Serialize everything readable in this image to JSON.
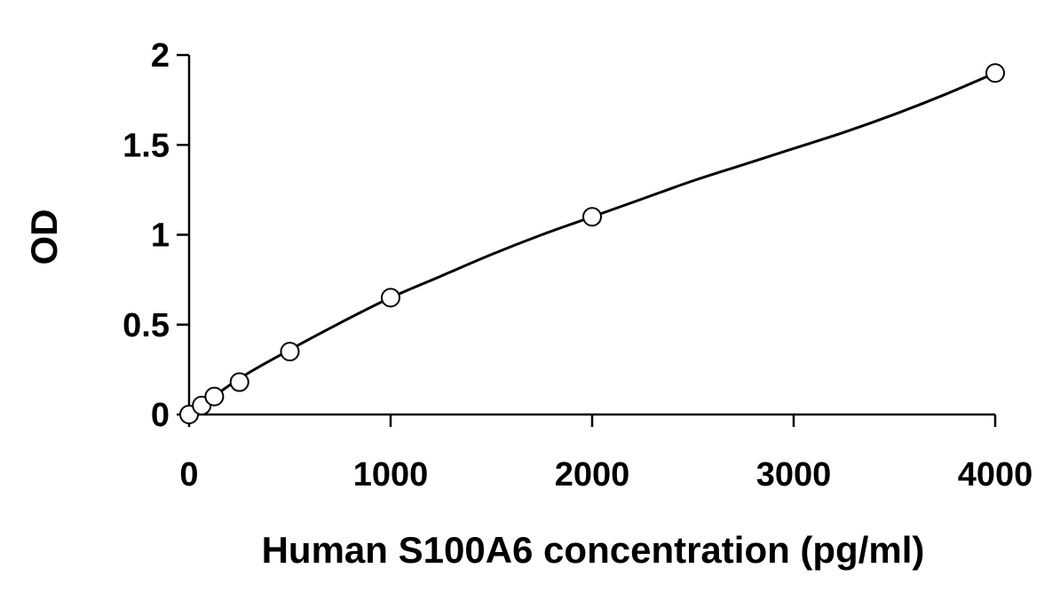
{
  "chart_data": {
    "type": "scatter",
    "title": "",
    "xlabel": "Human S100A6 concentration (pg/ml)",
    "ylabel": "OD",
    "xlim": [
      0,
      4000
    ],
    "ylim": [
      0,
      2
    ],
    "xticks": [
      0,
      1000,
      2000,
      3000,
      4000
    ],
    "yticks": [
      0,
      0.5,
      1,
      1.5,
      2
    ],
    "xtick_labels": [
      "0",
      "1000",
      "2000",
      "3000",
      "4000"
    ],
    "ytick_labels": [
      "0",
      "0.5",
      "1",
      "1.5",
      "2"
    ],
    "grid": false,
    "legend": "none",
    "series": [
      {
        "marker": "open-circle",
        "x": [
          0,
          62.5,
          125,
          250,
          500,
          1000,
          2000,
          4000
        ],
        "y": [
          0.0,
          0.05,
          0.1,
          0.18,
          0.35,
          0.65,
          1.1,
          1.9
        ]
      }
    ],
    "fit_curve": {
      "x": [
        0,
        250,
        500,
        750,
        1000,
        1250,
        1500,
        1750,
        2000,
        2250,
        2500,
        2750,
        3000,
        3250,
        3500,
        3750,
        4000
      ],
      "y": [
        0.0,
        0.2,
        0.36,
        0.51,
        0.65,
        0.77,
        0.89,
        1.0,
        1.1,
        1.2,
        1.3,
        1.39,
        1.48,
        1.57,
        1.67,
        1.78,
        1.9
      ]
    }
  }
}
